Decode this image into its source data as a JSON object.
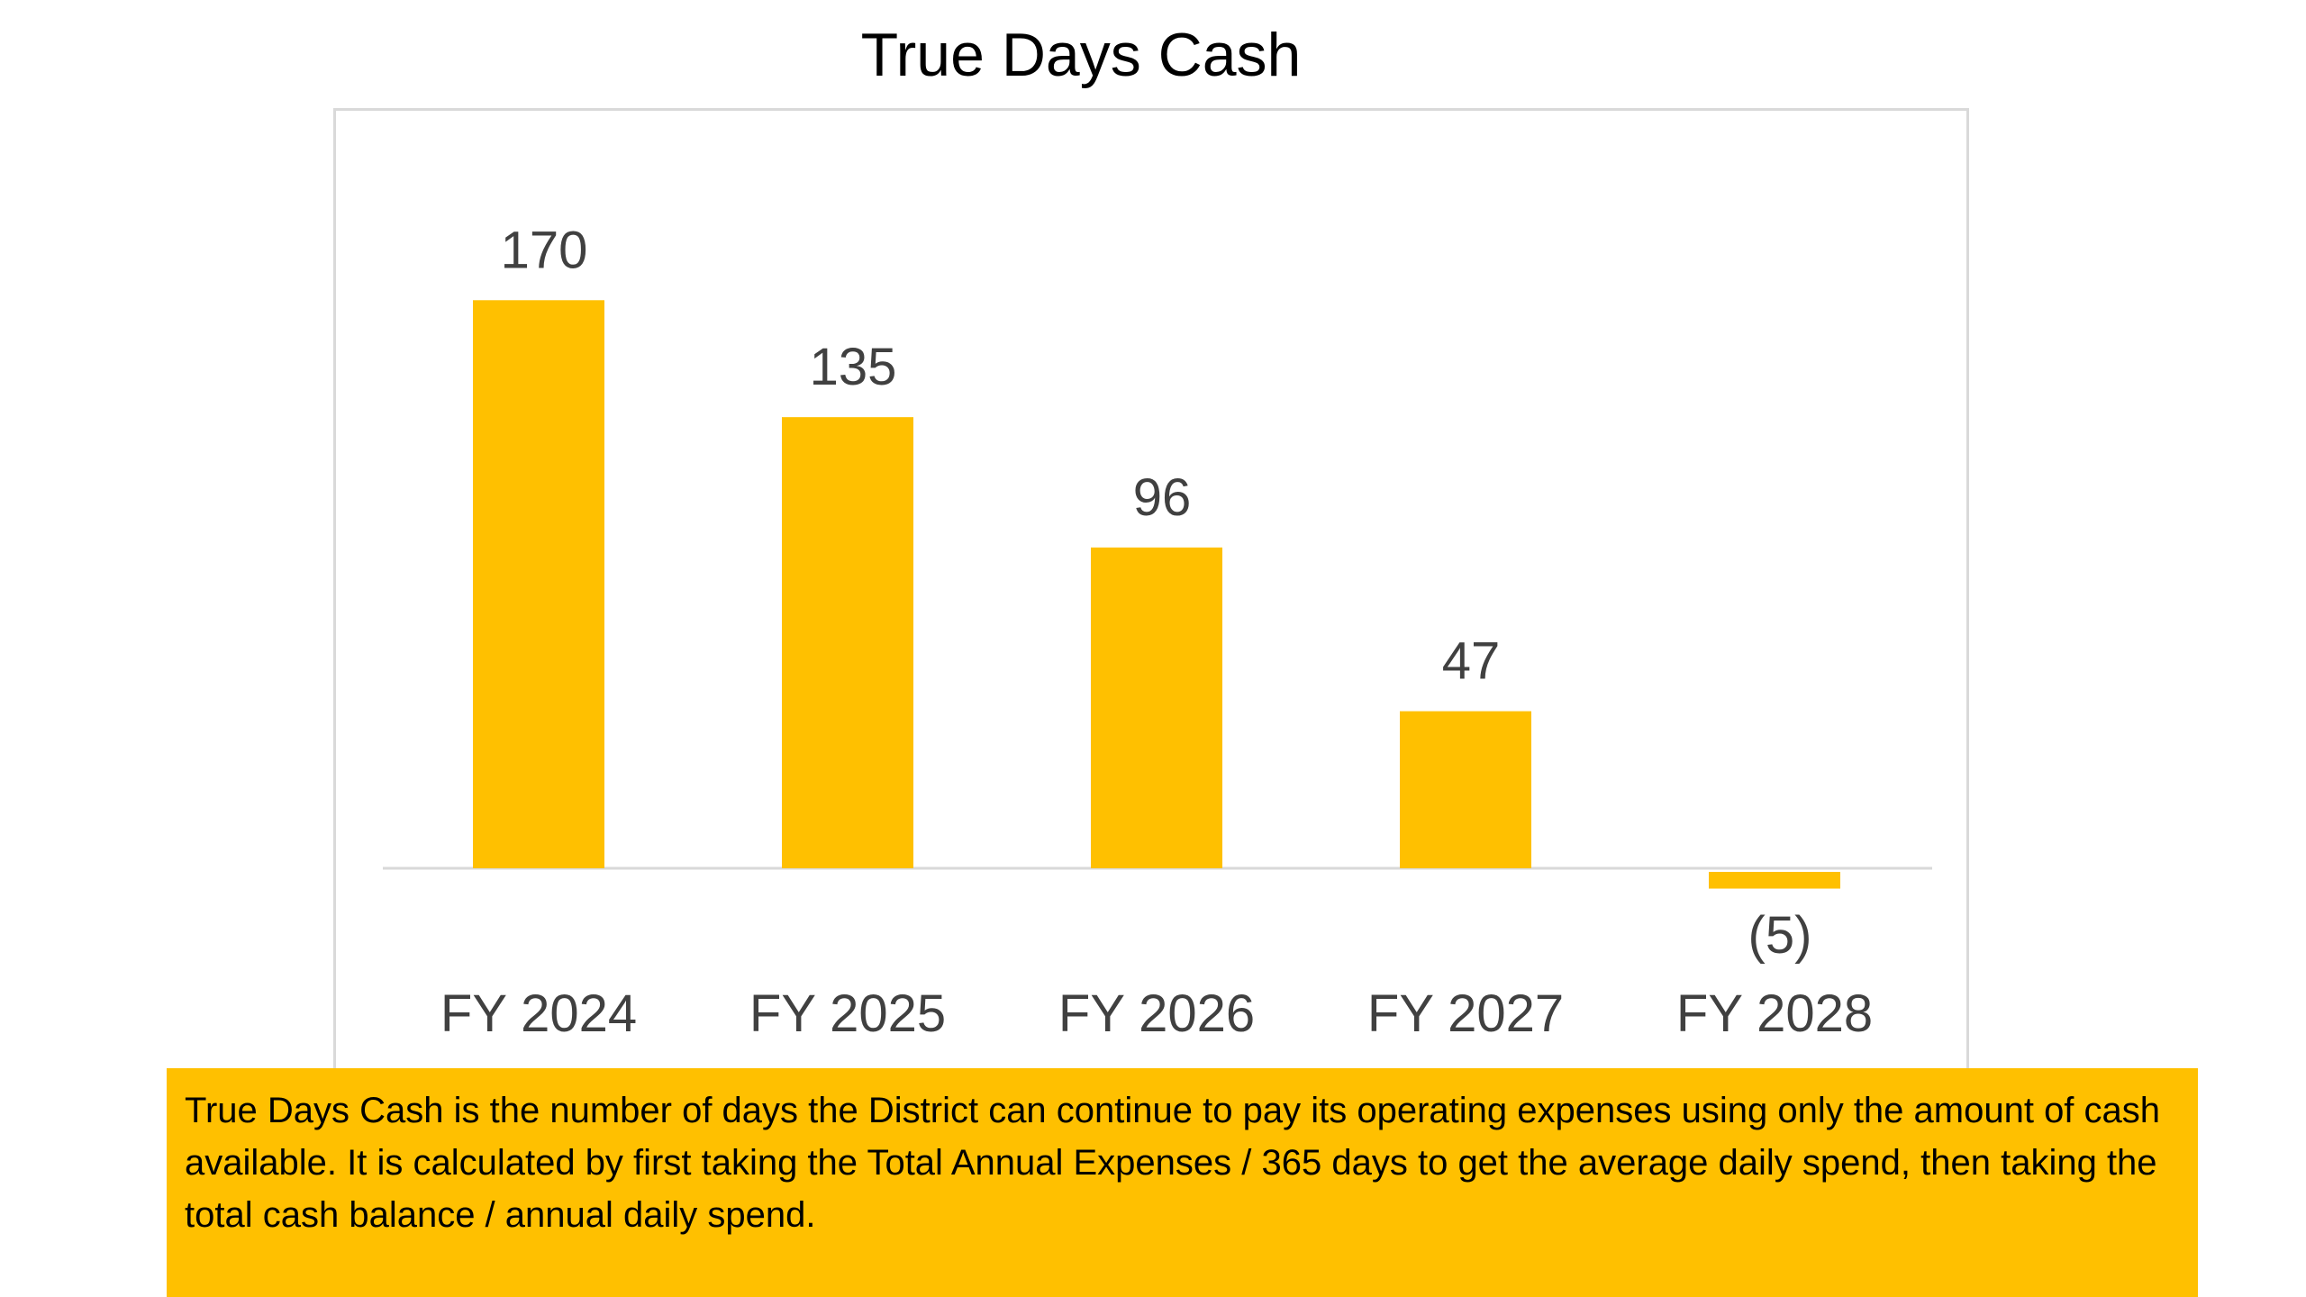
{
  "title": "True Days Cash",
  "note": "True Days Cash is the number of days the District can continue to pay its operating expenses using only the amount of cash available.  It is calculated by first taking the Total Annual Expenses / 365 days to get the average daily spend, then taking the total cash balance / annual daily spend.",
  "colors": {
    "bar": "#ffc000",
    "axis": "#d9d9d9",
    "label": "#404040",
    "note_bg": "#ffc000"
  },
  "chart_data": {
    "type": "bar",
    "title": "True Days Cash",
    "categories": [
      "FY 2024",
      "FY 2025",
      "FY 2026",
      "FY 2027",
      "FY 2028"
    ],
    "values": [
      170,
      135,
      96,
      47,
      -5
    ],
    "data_labels": [
      "170",
      "135",
      "96",
      "47",
      "(5)"
    ],
    "xlabel": "",
    "ylabel": "",
    "grid": false,
    "legend": "none"
  }
}
